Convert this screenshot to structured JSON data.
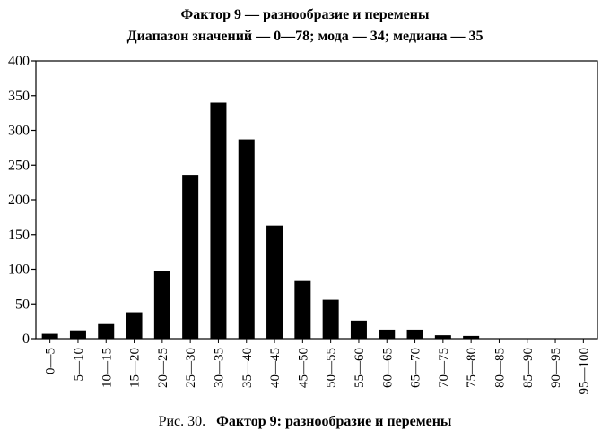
{
  "chart_data": {
    "type": "bar",
    "title": "Фактор 9 — разнообразие и перемены",
    "subtitle": "Диапазон значений — 0—78; мода — 34; медиана — 35",
    "categories": [
      "0—5",
      "5—10",
      "10—15",
      "15—20",
      "20—25",
      "25—30",
      "30—35",
      "35—40",
      "40—45",
      "45—50",
      "50—55",
      "55—60",
      "60—65",
      "65—70",
      "70—75",
      "75—80",
      "80—85",
      "85—90",
      "90—95",
      "95—100"
    ],
    "values": [
      7,
      12,
      21,
      38,
      97,
      236,
      340,
      287,
      163,
      83,
      56,
      26,
      13,
      13,
      5,
      4,
      0,
      0,
      0,
      0
    ],
    "ylim": [
      0,
      400
    ],
    "yticks": [
      0,
      50,
      100,
      150,
      200,
      250,
      300,
      350,
      400
    ],
    "xlabel": "",
    "ylabel": "",
    "bar_color": "#000000",
    "grid": false
  },
  "caption": {
    "prefix": "Рис. 30.",
    "text": "Фактор 9:  разнообразие и перемены"
  }
}
